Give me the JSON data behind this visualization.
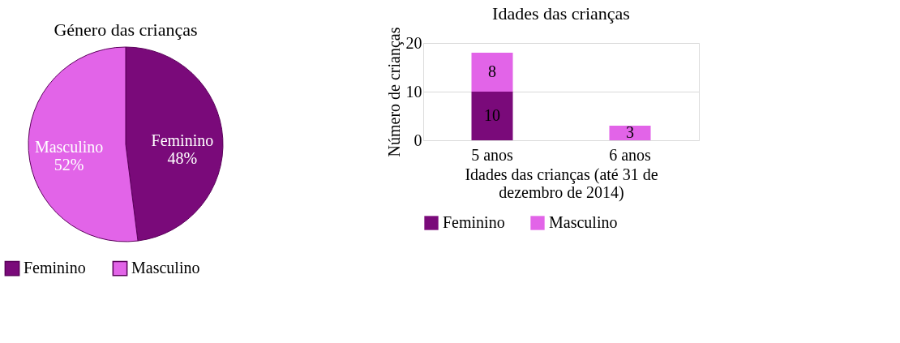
{
  "chart_data": [
    {
      "type": "pie",
      "title": "Género das crianças",
      "categories": [
        "Feminino",
        "Masculino"
      ],
      "values": [
        48,
        52
      ],
      "colors": [
        "#7a0a7a",
        "#e264e8"
      ],
      "value_labels": [
        "48%",
        "52%"
      ],
      "legend": "bottom"
    },
    {
      "type": "bar",
      "title": "Idades das crianças",
      "categories": [
        "5 anos",
        "6 anos"
      ],
      "stacked": true,
      "ylim": [
        0,
        20
      ],
      "yticks": [
        0,
        10,
        20
      ],
      "grid": "y",
      "legend": "bottom",
      "xlabel": "Idades das crianças (até 31 de dezembro de 2014)",
      "ylabel": "Número de crianças",
      "series": [
        {
          "name": "Feminino",
          "color": "#7a0a7a",
          "values": [
            10,
            null
          ],
          "value_labels": [
            "10",
            null
          ]
        },
        {
          "name": "Masculino",
          "color": "#e264e8",
          "values": [
            8,
            3
          ],
          "value_labels": [
            "8",
            "3"
          ]
        }
      ]
    }
  ]
}
